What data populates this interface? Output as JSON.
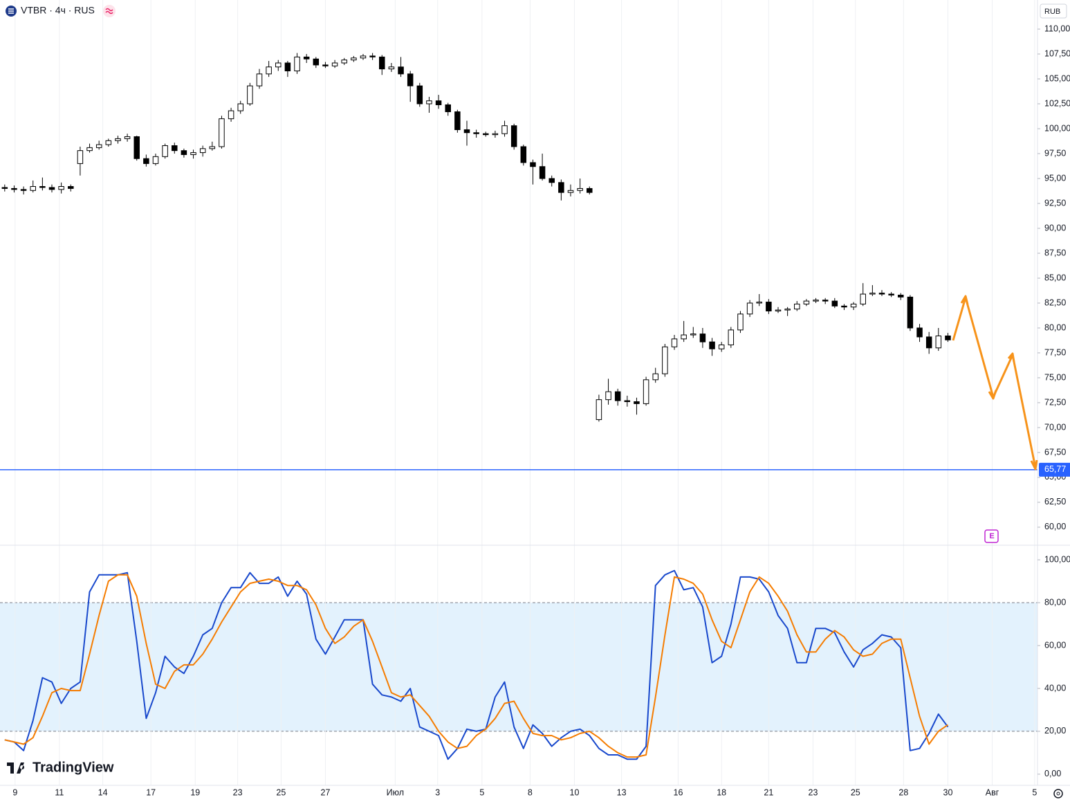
{
  "chart_data": [
    {
      "type": "candlestick",
      "title": "VTBR · 4ч · RUS",
      "currency": "RUB",
      "watermark": "TradingView",
      "xlim": [
        -0.5,
        109.5
      ],
      "xticks": [
        {
          "value": 1.1,
          "label": "9"
        },
        {
          "value": 5.8,
          "label": "11"
        },
        {
          "value": 10.4,
          "label": "14"
        },
        {
          "value": 15.5,
          "label": "17"
        },
        {
          "value": 20.2,
          "label": "19"
        },
        {
          "value": 24.7,
          "label": "23"
        },
        {
          "value": 29.3,
          "label": "25"
        },
        {
          "value": 34.0,
          "label": "27"
        },
        {
          "value": 41.4,
          "label": "Июл"
        },
        {
          "value": 45.9,
          "label": "3"
        },
        {
          "value": 50.6,
          "label": "5"
        },
        {
          "value": 55.7,
          "label": "8"
        },
        {
          "value": 60.4,
          "label": "10"
        },
        {
          "value": 65.4,
          "label": "13"
        },
        {
          "value": 71.4,
          "label": "16"
        },
        {
          "value": 76.0,
          "label": "18"
        },
        {
          "value": 81.0,
          "label": "21"
        },
        {
          "value": 85.7,
          "label": "23"
        },
        {
          "value": 90.2,
          "label": "25"
        },
        {
          "value": 95.3,
          "label": "28"
        },
        {
          "value": 100.0,
          "label": "30"
        },
        {
          "value": 104.7,
          "label": "Авг"
        },
        {
          "value": 109.2,
          "label": "5"
        }
      ],
      "ylim": [
        58.19,
        112.92
      ],
      "yticks": [
        {
          "value": 110,
          "label": "110,00"
        },
        {
          "value": 107.5,
          "label": "107,50"
        },
        {
          "value": 105,
          "label": "105,00"
        },
        {
          "value": 102.5,
          "label": "102,50"
        },
        {
          "value": 100,
          "label": "100,00"
        },
        {
          "value": 97.5,
          "label": "97,50"
        },
        {
          "value": 95,
          "label": "95,00"
        },
        {
          "value": 92.5,
          "label": "92,50"
        },
        {
          "value": 90,
          "label": "90,00"
        },
        {
          "value": 87.5,
          "label": "87,50"
        },
        {
          "value": 85,
          "label": "85,00"
        },
        {
          "value": 82.5,
          "label": "82,50"
        },
        {
          "value": 80,
          "label": "80,00"
        },
        {
          "value": 77.5,
          "label": "77,50"
        },
        {
          "value": 75,
          "label": "75,00"
        },
        {
          "value": 72.5,
          "label": "72,50"
        },
        {
          "value": 70,
          "label": "70,00"
        },
        {
          "value": 67.5,
          "label": "67,50"
        },
        {
          "value": 65,
          "label": "65,00"
        },
        {
          "value": 62.5,
          "label": "62,50"
        },
        {
          "value": 60,
          "label": "60,00"
        }
      ],
      "hline": {
        "value": 65.77,
        "label": "65,77",
        "color": "#2962ff"
      },
      "up_color": "#ffffff",
      "down_color": "#000000",
      "wick_color": "#000000",
      "ohlc": [
        [
          94.1,
          94.4,
          93.7,
          94.0
        ],
        [
          94.0,
          94.3,
          93.6,
          93.9
        ],
        [
          93.9,
          94.2,
          93.4,
          93.8
        ],
        [
          93.8,
          94.8,
          93.6,
          94.2
        ],
        [
          94.2,
          95.1,
          93.8,
          94.1
        ],
        [
          94.1,
          94.4,
          93.6,
          93.9
        ],
        [
          93.9,
          94.6,
          93.5,
          94.2
        ],
        [
          94.2,
          94.4,
          93.7,
          94.0
        ],
        [
          96.5,
          98.2,
          95.3,
          97.8
        ],
        [
          97.8,
          98.5,
          97.6,
          98.1
        ],
        [
          98.1,
          98.8,
          97.9,
          98.4
        ],
        [
          98.4,
          99.0,
          98.2,
          98.8
        ],
        [
          98.8,
          99.3,
          98.5,
          99.0
        ],
        [
          99.0,
          99.5,
          98.7,
          99.2
        ],
        [
          99.2,
          99.3,
          96.8,
          97.0
        ],
        [
          97.0,
          97.4,
          96.2,
          96.5
        ],
        [
          96.5,
          97.5,
          96.3,
          97.2
        ],
        [
          97.2,
          98.5,
          97.0,
          98.3
        ],
        [
          98.3,
          98.6,
          97.5,
          97.8
        ],
        [
          97.8,
          98.0,
          97.1,
          97.4
        ],
        [
          97.4,
          97.9,
          97.0,
          97.6
        ],
        [
          97.6,
          98.3,
          97.2,
          98.0
        ],
        [
          98.0,
          98.7,
          97.8,
          98.2
        ],
        [
          98.2,
          101.3,
          98.0,
          101.0
        ],
        [
          101.0,
          102.1,
          100.7,
          101.8
        ],
        [
          101.8,
          102.8,
          101.5,
          102.5
        ],
        [
          102.5,
          104.6,
          102.3,
          104.3
        ],
        [
          104.3,
          106.0,
          104.0,
          105.5
        ],
        [
          105.5,
          106.8,
          105.2,
          106.2
        ],
        [
          106.2,
          106.9,
          105.8,
          106.6
        ],
        [
          106.6,
          106.8,
          105.2,
          105.8
        ],
        [
          105.8,
          107.6,
          105.5,
          107.2
        ],
        [
          107.2,
          107.5,
          106.6,
          107.0
        ],
        [
          107.0,
          107.2,
          106.1,
          106.4
        ],
        [
          106.4,
          106.7,
          106.1,
          106.3
        ],
        [
          106.3,
          106.9,
          106.1,
          106.6
        ],
        [
          106.6,
          107.1,
          106.4,
          106.9
        ],
        [
          106.9,
          107.3,
          106.7,
          107.1
        ],
        [
          107.1,
          107.5,
          106.9,
          107.3
        ],
        [
          107.3,
          107.6,
          106.9,
          107.2
        ],
        [
          107.2,
          107.4,
          105.4,
          106.0
        ],
        [
          106.0,
          106.6,
          105.7,
          106.2
        ],
        [
          106.2,
          107.2,
          105.2,
          105.5
        ],
        [
          105.5,
          105.8,
          102.7,
          104.3
        ],
        [
          104.3,
          104.6,
          102.2,
          102.5
        ],
        [
          102.5,
          103.2,
          101.6,
          102.8
        ],
        [
          102.8,
          103.4,
          102.0,
          102.4
        ],
        [
          102.4,
          102.6,
          101.3,
          101.7
        ],
        [
          101.7,
          101.9,
          99.6,
          99.9
        ],
        [
          99.9,
          100.8,
          98.3,
          99.6
        ],
        [
          99.6,
          99.9,
          99.1,
          99.5
        ],
        [
          99.5,
          99.7,
          99.2,
          99.4
        ],
        [
          99.4,
          99.8,
          99.1,
          99.5
        ],
        [
          99.5,
          100.8,
          99.2,
          100.3
        ],
        [
          100.3,
          100.5,
          97.9,
          98.2
        ],
        [
          98.2,
          98.4,
          96.3,
          96.6
        ],
        [
          96.6,
          96.9,
          94.4,
          96.2
        ],
        [
          96.2,
          97.5,
          94.8,
          95.0
        ],
        [
          95.0,
          95.3,
          94.2,
          94.6
        ],
        [
          94.6,
          94.9,
          92.8,
          93.6
        ],
        [
          93.6,
          94.4,
          93.2,
          93.8
        ],
        [
          93.8,
          95.0,
          93.5,
          94.0
        ],
        [
          94.0,
          94.2,
          93.4,
          93.6
        ],
        [
          70.8,
          73.3,
          70.6,
          72.8
        ],
        [
          72.8,
          74.9,
          72.3,
          73.6
        ],
        [
          73.6,
          73.9,
          72.2,
          72.7
        ],
        [
          72.7,
          73.2,
          72.1,
          72.6
        ],
        [
          72.6,
          73.0,
          71.3,
          72.4
        ],
        [
          72.4,
          75.1,
          72.2,
          74.8
        ],
        [
          74.8,
          76.0,
          74.5,
          75.4
        ],
        [
          75.4,
          78.4,
          75.1,
          78.1
        ],
        [
          78.1,
          79.3,
          77.8,
          78.9
        ],
        [
          78.9,
          80.7,
          78.6,
          79.3
        ],
        [
          79.3,
          80.1,
          79.0,
          79.4
        ],
        [
          79.4,
          80.0,
          78.0,
          78.6
        ],
        [
          78.6,
          79.0,
          77.2,
          77.9
        ],
        [
          77.9,
          78.6,
          77.6,
          78.3
        ],
        [
          78.3,
          80.1,
          78.0,
          79.8
        ],
        [
          79.8,
          81.7,
          79.5,
          81.4
        ],
        [
          81.4,
          82.8,
          81.1,
          82.5
        ],
        [
          82.5,
          83.4,
          82.2,
          82.6
        ],
        [
          82.6,
          82.9,
          81.4,
          81.7
        ],
        [
          81.7,
          82.1,
          81.5,
          81.8
        ],
        [
          81.8,
          82.1,
          81.2,
          81.9
        ],
        [
          81.9,
          82.7,
          81.7,
          82.4
        ],
        [
          82.4,
          82.9,
          82.2,
          82.7
        ],
        [
          82.7,
          83.0,
          82.5,
          82.8
        ],
        [
          82.8,
          83.0,
          82.4,
          82.7
        ],
        [
          82.7,
          83.0,
          82.0,
          82.2
        ],
        [
          82.2,
          82.4,
          81.8,
          82.1
        ],
        [
          82.1,
          82.6,
          81.8,
          82.4
        ],
        [
          82.4,
          84.5,
          82.2,
          83.4
        ],
        [
          83.4,
          84.3,
          83.2,
          83.5
        ],
        [
          83.5,
          83.8,
          83.2,
          83.4
        ],
        [
          83.4,
          83.6,
          83.1,
          83.3
        ],
        [
          83.3,
          83.5,
          82.8,
          83.1
        ],
        [
          83.1,
          83.3,
          79.7,
          80.0
        ],
        [
          80.0,
          80.4,
          78.6,
          79.1
        ],
        [
          79.1,
          79.6,
          77.4,
          78.0
        ],
        [
          78.0,
          80.0,
          77.7,
          79.2
        ],
        [
          79.2,
          79.5,
          78.6,
          78.8
        ]
      ]
    },
    {
      "type": "line",
      "ylim": [
        -5.2,
        106.8
      ],
      "yticks": [
        {
          "value": 100,
          "label": "100,00"
        },
        {
          "value": 80,
          "label": "80,00"
        },
        {
          "value": 60,
          "label": "60,00"
        },
        {
          "value": 40,
          "label": "40,00"
        },
        {
          "value": 20,
          "label": "20,00"
        },
        {
          "value": 0,
          "label": "0,00"
        }
      ],
      "bands": [
        20,
        80
      ],
      "band_color": "#e3f2fd",
      "series": [
        {
          "color": "#1848cc",
          "values": [
            16,
            15,
            11,
            25,
            45,
            43,
            33,
            40,
            43,
            85,
            93,
            93,
            93,
            94,
            62,
            26,
            38,
            55,
            50,
            47,
            55,
            65,
            68,
            80,
            87,
            87,
            94,
            89,
            89,
            92,
            83,
            90,
            84,
            63,
            56,
            64,
            72,
            72,
            72,
            42,
            37,
            36,
            34,
            40,
            22,
            20,
            18,
            7,
            12,
            21,
            20,
            21,
            36,
            43,
            22,
            12,
            23,
            19,
            13,
            17,
            20,
            21,
            18,
            12,
            9,
            9,
            7,
            7,
            13,
            88,
            93,
            95,
            86,
            87,
            78,
            52,
            55,
            70,
            92,
            92,
            91,
            85,
            74,
            68,
            52,
            52,
            68,
            68,
            66,
            57,
            50,
            58,
            61,
            65,
            64,
            59,
            11,
            12,
            19,
            28,
            22
          ]
        },
        {
          "color": "#f57c00",
          "values": [
            16,
            15,
            14,
            17,
            27,
            38,
            40,
            39,
            39,
            56,
            74,
            90,
            93,
            93,
            83,
            61,
            42,
            40,
            48,
            51,
            51,
            56,
            63,
            71,
            78,
            85,
            89,
            90,
            91,
            90,
            88,
            88,
            86,
            79,
            68,
            61,
            64,
            69,
            72,
            62,
            50,
            38,
            36,
            37,
            32,
            27,
            20,
            15,
            12,
            13,
            18,
            21,
            26,
            33,
            34,
            26,
            19,
            18,
            18,
            16,
            17,
            19,
            20,
            17,
            13,
            10,
            8,
            8,
            9,
            36,
            65,
            92,
            91,
            89,
            84,
            72,
            62,
            59,
            72,
            85,
            92,
            89,
            83,
            76,
            65,
            57,
            57,
            63,
            67,
            64,
            58,
            55,
            56,
            61,
            63,
            63,
            45,
            27,
            14,
            20,
            23
          ]
        }
      ]
    }
  ]
}
